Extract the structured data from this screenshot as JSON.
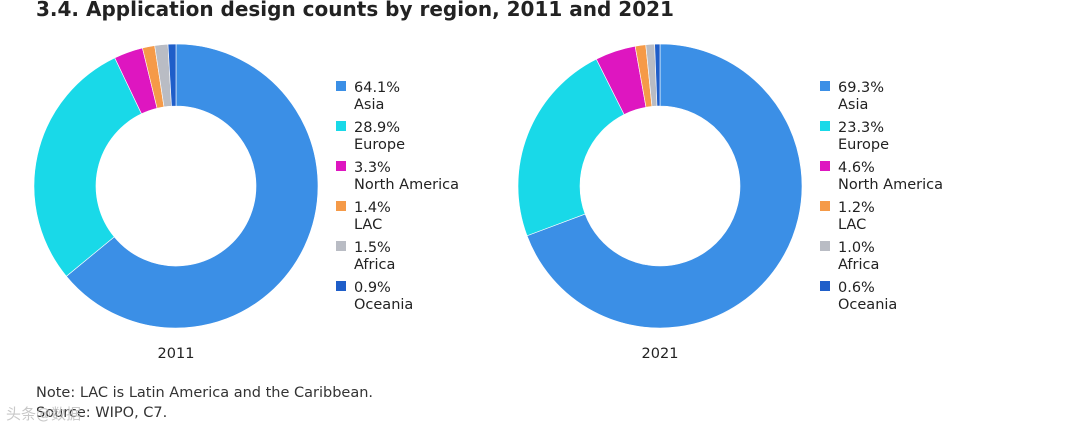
{
  "title": "3.4. Application design counts by region, 2011 and 2021",
  "note": "Note: LAC is Latin America and the Caribbean.",
  "source": "Source: WIPO, C7.",
  "watermark": "头条@数据",
  "colors": {
    "Asia": "#3b8fe6",
    "Europe": "#19d9e8",
    "North America": "#de16c0",
    "LAC": "#f59a48",
    "Africa": "#b9bcc4",
    "Oceania": "#1f5ec9"
  },
  "chart_data": [
    {
      "type": "pie",
      "donut": true,
      "label": "2011",
      "slices": [
        {
          "name": "Asia",
          "value": 64.1,
          "label": "64.1%"
        },
        {
          "name": "Europe",
          "value": 28.9,
          "label": "28.9%"
        },
        {
          "name": "North America",
          "value": 3.3,
          "label": "3.3%"
        },
        {
          "name": "LAC",
          "value": 1.4,
          "label": "1.4%"
        },
        {
          "name": "Africa",
          "value": 1.5,
          "label": "1.5%"
        },
        {
          "name": "Oceania",
          "value": 0.9,
          "label": "0.9%"
        }
      ],
      "legend": "right"
    },
    {
      "type": "pie",
      "donut": true,
      "label": "2021",
      "slices": [
        {
          "name": "Asia",
          "value": 69.3,
          "label": "69.3%"
        },
        {
          "name": "Europe",
          "value": 23.3,
          "label": "23.3%"
        },
        {
          "name": "North America",
          "value": 4.6,
          "label": "4.6%"
        },
        {
          "name": "LAC",
          "value": 1.2,
          "label": "1.2%"
        },
        {
          "name": "Africa",
          "value": 1.0,
          "label": "1.0%"
        },
        {
          "name": "Oceania",
          "value": 0.6,
          "label": "0.6%"
        }
      ],
      "legend": "right"
    }
  ]
}
